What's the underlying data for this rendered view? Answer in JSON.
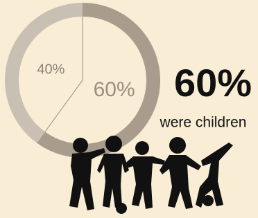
{
  "chart_data": {
    "type": "donut",
    "values": [
      60,
      40
    ],
    "value_labels": [
      "60%",
      "40%"
    ],
    "colors": [
      "#a89c8c",
      "#c9c0b4"
    ],
    "label_colors": [
      "#9a8f81",
      "#8a8178"
    ],
    "highlight": {
      "value": 60,
      "label": "60%"
    },
    "caption": "were children"
  }
}
